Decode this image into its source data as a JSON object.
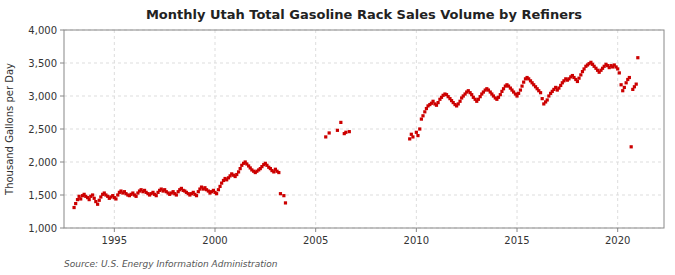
{
  "chart_data": {
    "type": "scatter",
    "title": "Monthly Utah Total Gasoline Rack Sales Volume by Refiners",
    "ylabel": "Thousand Gallons per Day",
    "source": "Source: U.S. Energy Information Administration",
    "color": "#cc0000",
    "marker": "square",
    "grid": true,
    "xlim": [
      1992.5,
      2022.3
    ],
    "xticks": [
      1995,
      2000,
      2005,
      2010,
      2015,
      2020
    ],
    "ylim": [
      1000,
      4000
    ],
    "yticks": [
      {
        "value": 1000,
        "label": "1,000"
      },
      {
        "value": 1500,
        "label": "1,500"
      },
      {
        "value": 2000,
        "label": "2,000"
      },
      {
        "value": 2500,
        "label": "2,500"
      },
      {
        "value": 3000,
        "label": "3,000"
      },
      {
        "value": 3500,
        "label": "3,500"
      },
      {
        "value": 4000,
        "label": "4,000"
      }
    ],
    "x": [
      1993.0,
      1993.08,
      1993.17,
      1993.25,
      1993.33,
      1993.42,
      1993.5,
      1993.58,
      1993.67,
      1993.75,
      1993.83,
      1993.92,
      1994.0,
      1994.08,
      1994.17,
      1994.25,
      1994.33,
      1994.42,
      1994.5,
      1994.58,
      1994.67,
      1994.75,
      1994.83,
      1994.92,
      1995.0,
      1995.08,
      1995.17,
      1995.25,
      1995.33,
      1995.42,
      1995.5,
      1995.58,
      1995.67,
      1995.75,
      1995.83,
      1995.92,
      1996.0,
      1996.08,
      1996.17,
      1996.25,
      1996.33,
      1996.42,
      1996.5,
      1996.58,
      1996.67,
      1996.75,
      1996.83,
      1996.92,
      1997.0,
      1997.08,
      1997.17,
      1997.25,
      1997.33,
      1997.42,
      1997.5,
      1997.58,
      1997.67,
      1997.75,
      1997.83,
      1997.92,
      1998.0,
      1998.08,
      1998.17,
      1998.25,
      1998.33,
      1998.42,
      1998.5,
      1998.58,
      1998.67,
      1998.75,
      1998.83,
      1998.92,
      1999.0,
      1999.08,
      1999.17,
      1999.25,
      1999.33,
      1999.42,
      1999.5,
      1999.58,
      1999.67,
      1999.75,
      1999.83,
      1999.92,
      2000.0,
      2000.08,
      2000.17,
      2000.25,
      2000.33,
      2000.42,
      2000.5,
      2000.58,
      2000.67,
      2000.75,
      2000.83,
      2000.92,
      2001.0,
      2001.08,
      2001.17,
      2001.25,
      2001.33,
      2001.42,
      2001.5,
      2001.58,
      2001.67,
      2001.75,
      2001.83,
      2001.92,
      2002.0,
      2002.08,
      2002.17,
      2002.25,
      2002.33,
      2002.42,
      2002.5,
      2002.58,
      2002.67,
      2002.75,
      2002.83,
      2002.92,
      2003.0,
      2003.08,
      2003.17,
      2003.25,
      2003.42,
      2003.5,
      2005.5,
      2005.67,
      2006.08,
      2006.25,
      2006.42,
      2006.5,
      2006.67,
      2009.67,
      2009.75,
      2009.83,
      2010.0,
      2010.08,
      2010.17,
      2010.25,
      2010.33,
      2010.42,
      2010.5,
      2010.58,
      2010.67,
      2010.75,
      2010.83,
      2010.92,
      2011.0,
      2011.08,
      2011.17,
      2011.25,
      2011.33,
      2011.42,
      2011.5,
      2011.58,
      2011.67,
      2011.75,
      2011.83,
      2011.92,
      2012.0,
      2012.08,
      2012.17,
      2012.25,
      2012.33,
      2012.42,
      2012.5,
      2012.58,
      2012.67,
      2012.75,
      2012.83,
      2012.92,
      2013.0,
      2013.08,
      2013.17,
      2013.25,
      2013.33,
      2013.42,
      2013.5,
      2013.58,
      2013.67,
      2013.75,
      2013.83,
      2013.92,
      2014.0,
      2014.08,
      2014.17,
      2014.25,
      2014.33,
      2014.42,
      2014.5,
      2014.58,
      2014.67,
      2014.75,
      2014.83,
      2014.92,
      2015.0,
      2015.08,
      2015.17,
      2015.25,
      2015.33,
      2015.42,
      2015.5,
      2015.58,
      2015.67,
      2015.75,
      2015.83,
      2015.92,
      2016.0,
      2016.08,
      2016.17,
      2016.25,
      2016.33,
      2016.42,
      2016.5,
      2016.58,
      2016.67,
      2016.75,
      2016.83,
      2016.92,
      2017.0,
      2017.08,
      2017.17,
      2017.25,
      2017.33,
      2017.42,
      2017.5,
      2017.58,
      2017.67,
      2017.75,
      2017.83,
      2017.92,
      2018.0,
      2018.08,
      2018.17,
      2018.25,
      2018.33,
      2018.42,
      2018.5,
      2018.58,
      2018.67,
      2018.75,
      2018.83,
      2018.92,
      2019.0,
      2019.08,
      2019.17,
      2019.25,
      2019.33,
      2019.42,
      2019.5,
      2019.58,
      2019.67,
      2019.75,
      2019.83,
      2019.92,
      2020.0,
      2020.08,
      2020.17,
      2020.25,
      2020.33,
      2020.42,
      2020.5,
      2020.58,
      2020.67,
      2020.75,
      2020.83,
      2020.92,
      2021.0
    ],
    "values": [
      1310,
      1370,
      1430,
      1480,
      1440,
      1490,
      1510,
      1480,
      1460,
      1430,
      1480,
      1500,
      1450,
      1400,
      1360,
      1420,
      1470,
      1510,
      1530,
      1500,
      1480,
      1450,
      1470,
      1490,
      1460,
      1440,
      1500,
      1540,
      1560,
      1530,
      1550,
      1520,
      1500,
      1490,
      1510,
      1530,
      1500,
      1480,
      1530,
      1560,
      1580,
      1550,
      1570,
      1540,
      1520,
      1500,
      1520,
      1540,
      1510,
      1490,
      1540,
      1570,
      1590,
      1560,
      1580,
      1550,
      1530,
      1510,
      1530,
      1550,
      1520,
      1500,
      1550,
      1580,
      1600,
      1570,
      1560,
      1540,
      1520,
      1500,
      1520,
      1540,
      1510,
      1490,
      1550,
      1590,
      1620,
      1590,
      1610,
      1580,
      1560,
      1530,
      1550,
      1570,
      1540,
      1520,
      1580,
      1630,
      1680,
      1720,
      1750,
      1730,
      1760,
      1790,
      1820,
      1800,
      1780,
      1810,
      1850,
      1900,
      1950,
      1980,
      2000,
      1970,
      1940,
      1910,
      1880,
      1860,
      1840,
      1860,
      1880,
      1900,
      1930,
      1960,
      1980,
      1950,
      1920,
      1900,
      1870,
      1850,
      1890,
      1860,
      1840,
      1520,
      1490,
      1380,
      2380,
      2440,
      2480,
      2600,
      2430,
      2450,
      2460,
      2350,
      2420,
      2380,
      2450,
      2400,
      2500,
      2650,
      2700,
      2760,
      2810,
      2850,
      2870,
      2890,
      2920,
      2880,
      2860,
      2900,
      2950,
      2980,
      3010,
      3030,
      3020,
      2990,
      2960,
      2930,
      2900,
      2870,
      2850,
      2880,
      2920,
      2970,
      3000,
      3030,
      3060,
      3080,
      3050,
      3020,
      2980,
      2950,
      2920,
      2950,
      2990,
      3030,
      3060,
      3090,
      3110,
      3090,
      3060,
      3030,
      3000,
      2970,
      2950,
      2980,
      3020,
      3070,
      3110,
      3150,
      3170,
      3150,
      3120,
      3090,
      3060,
      3030,
      3000,
      3040,
      3090,
      3150,
      3210,
      3260,
      3280,
      3260,
      3230,
      3200,
      3170,
      3140,
      3110,
      3080,
      3050,
      2960,
      2880,
      2910,
      2940,
      3000,
      3040,
      3070,
      3100,
      3130,
      3090,
      3120,
      3160,
      3200,
      3230,
      3260,
      3240,
      3260,
      3290,
      3310,
      3280,
      3250,
      3220,
      3270,
      3320,
      3370,
      3410,
      3450,
      3470,
      3490,
      3510,
      3480,
      3450,
      3420,
      3390,
      3360,
      3390,
      3420,
      3450,
      3480,
      3460,
      3430,
      3460,
      3440,
      3470,
      3440,
      3410,
      3350,
      3170,
      3080,
      3130,
      3200,
      3250,
      3280,
      2230,
      3100,
      3140,
      3180,
      3580
    ]
  }
}
